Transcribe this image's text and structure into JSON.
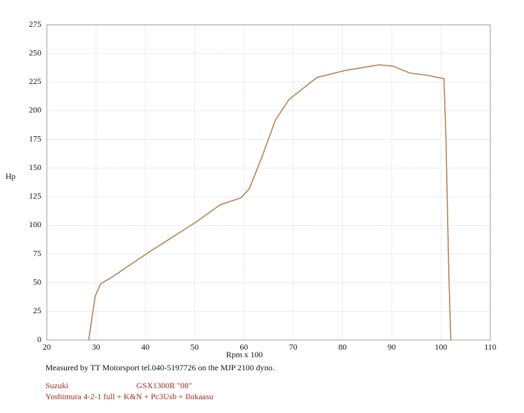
{
  "chart_data": {
    "type": "line",
    "y_label": "Hp",
    "x_label": "Rpm x 100",
    "caption": "Measured by TT Motorsport tel.040-5197726 on the MJP 2100 dyno.",
    "make": "Suzuki",
    "model": "GSX1300R \"08\"",
    "setup": "Yoshimura  4-2-1 full + K&N + Pc3Usb + Ilokaasu",
    "x": [
      28.5,
      29.8,
      30.9,
      32.9,
      40.5,
      50.3,
      55.2,
      59.4,
      61.1,
      63.6,
      66.4,
      69.2,
      74.8,
      80.4,
      87.4,
      90.2,
      93.6,
      97.1,
      100.6,
      101,
      101.6,
      102
    ],
    "series": [
      {
        "name": "Hp",
        "color": "#b07a4a",
        "values": [
          0,
          38,
          49,
          54,
          76,
          103,
          118,
          124,
          132,
          159,
          192,
          210,
          229,
          235,
          240,
          239,
          233,
          231,
          228,
          177,
          56,
          0
        ]
      }
    ],
    "xlim": [
      20,
      110
    ],
    "xticks": [
      20,
      30,
      40,
      50,
      60,
      70,
      80,
      90,
      100,
      110
    ],
    "ylim": [
      0,
      275
    ],
    "yticks": [
      0,
      25,
      50,
      75,
      100,
      125,
      150,
      175,
      200,
      225,
      250,
      275
    ],
    "grid": true
  }
}
